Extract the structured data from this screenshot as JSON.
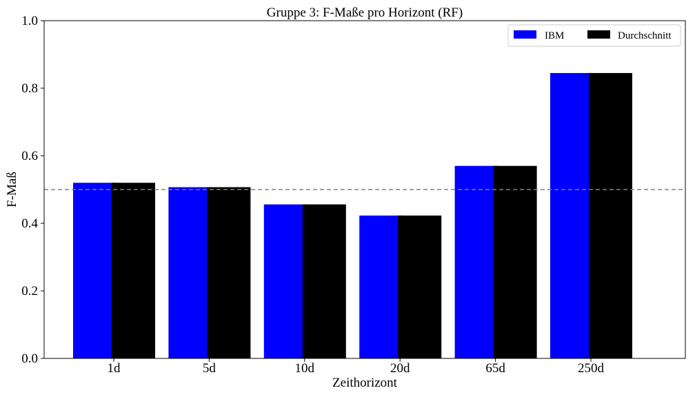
{
  "chart_data": {
    "type": "bar",
    "title": "Gruppe 3: F-Maße pro Horizont (RF)",
    "xlabel": "Zeithorizont",
    "ylabel": "F-Maß",
    "categories": [
      "1d",
      "5d",
      "10d",
      "20d",
      "65d",
      "250d"
    ],
    "series": [
      {
        "name": "IBM",
        "color": "#0000ff",
        "values": [
          0.52,
          0.507,
          0.456,
          0.423,
          0.57,
          0.845
        ]
      },
      {
        "name": "Durchschnitt",
        "color": "#000000",
        "values": [
          0.52,
          0.507,
          0.456,
          0.423,
          0.57,
          0.845
        ]
      }
    ],
    "ylim": [
      0,
      1.0
    ],
    "yticks": [
      "0.0",
      "0.2",
      "0.4",
      "0.6",
      "0.8",
      "1.0"
    ],
    "reference_line": {
      "value": 0.5,
      "style": "dashed",
      "color": "#808080"
    },
    "grid": false,
    "legend_position": "top-right"
  }
}
